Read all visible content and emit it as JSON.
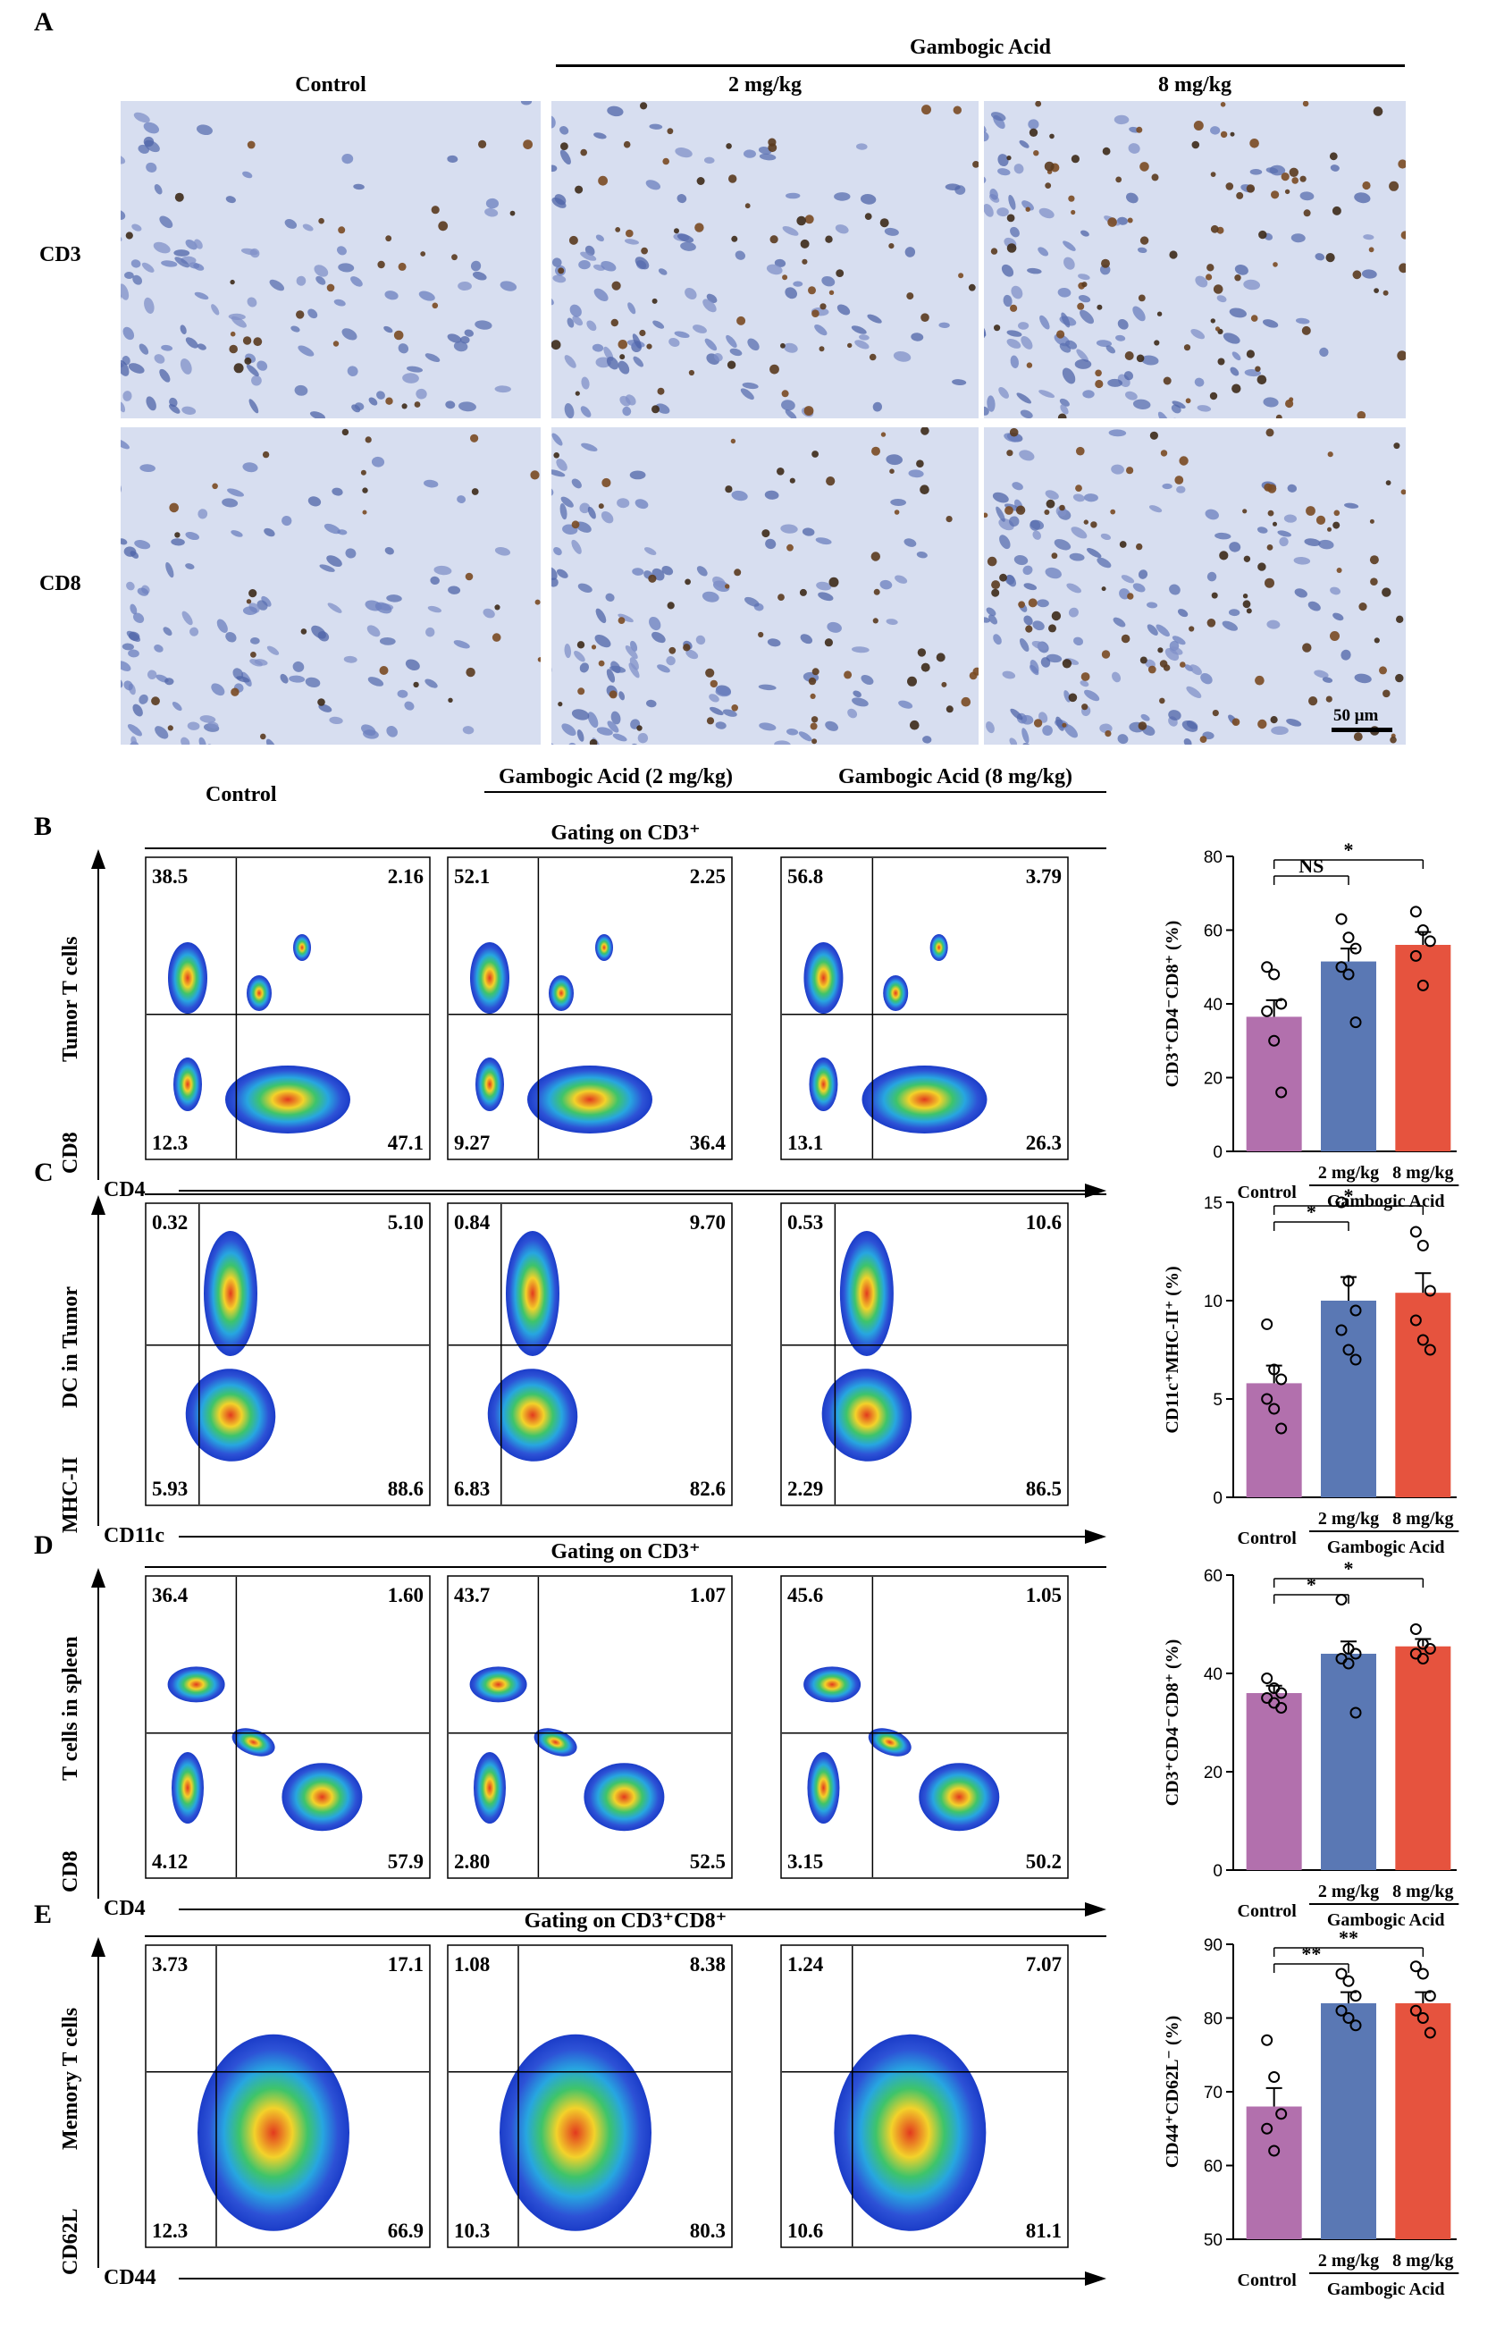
{
  "panels": {
    "A": "A",
    "B": "B",
    "C": "C",
    "D": "D",
    "E": "E"
  },
  "panelA": {
    "group_label": "Gambogic Acid",
    "columns": [
      "Control",
      "2 mg/kg",
      "8 mg/kg"
    ],
    "rows": [
      "CD3",
      "CD8"
    ],
    "scale_bar": "50 μm"
  },
  "flow_headers": {
    "control": "Control",
    "ga2": "Gambogic Acid (2 mg/kg)",
    "ga8": "Gambogic Acid (8 mg/kg)"
  },
  "flow_rows": [
    {
      "id": "B",
      "gating": "Gating on CD3⁺",
      "ylabel": "Tumor T cells",
      "yaxis": "CD8",
      "xaxis": "CD4",
      "plots": [
        {
          "tl": "38.5",
          "tr": "2.16",
          "bl": "12.3",
          "br": "47.1"
        },
        {
          "tl": "52.1",
          "tr": "2.25",
          "bl": "9.27",
          "br": "36.4"
        },
        {
          "tl": "56.8",
          "tr": "3.79",
          "bl": "13.1",
          "br": "26.3"
        }
      ]
    },
    {
      "id": "C",
      "gating": "",
      "ylabel": "DC in Tumor",
      "yaxis": "MHC-II",
      "xaxis": "CD11c",
      "plots": [
        {
          "tl": "0.32",
          "tr": "5.10",
          "bl": "5.93",
          "br": "88.6"
        },
        {
          "tl": "0.84",
          "tr": "9.70",
          "bl": "6.83",
          "br": "82.6"
        },
        {
          "tl": "0.53",
          "tr": "10.6",
          "bl": "2.29",
          "br": "86.5"
        }
      ]
    },
    {
      "id": "D",
      "gating": "Gating on CD3⁺",
      "ylabel": "T cells in spleen",
      "yaxis": "CD8",
      "xaxis": "CD4",
      "plots": [
        {
          "tl": "36.4",
          "tr": "1.60",
          "bl": "4.12",
          "br": "57.9"
        },
        {
          "tl": "43.7",
          "tr": "1.07",
          "bl": "2.80",
          "br": "52.5"
        },
        {
          "tl": "45.6",
          "tr": "1.05",
          "bl": "3.15",
          "br": "50.2"
        }
      ]
    },
    {
      "id": "E",
      "gating": "Gating on CD3⁺CD8⁺",
      "ylabel": "Memory T cells",
      "yaxis": "CD62L",
      "xaxis": "CD44",
      "plots": [
        {
          "tl": "3.73",
          "tr": "17.1",
          "bl": "12.3",
          "br": "66.9"
        },
        {
          "tl": "1.08",
          "tr": "8.38",
          "bl": "10.3",
          "br": "80.3"
        },
        {
          "tl": "1.24",
          "tr": "7.07",
          "bl": "10.6",
          "br": "81.1"
        }
      ]
    }
  ],
  "chart_data": [
    {
      "type": "bar",
      "panel": "B",
      "ylabel": "CD3⁺CD4⁻CD8⁺ (%)",
      "categories": [
        "Control",
        "2 mg/kg",
        "8 mg/kg"
      ],
      "group_label": "Gambogic Acid",
      "values": [
        36.5,
        51.5,
        56
      ],
      "errors": [
        4.5,
        3.5,
        3.5
      ],
      "points": [
        [
          50,
          48,
          40,
          38,
          30,
          16
        ],
        [
          63,
          58,
          55,
          50,
          48,
          35
        ],
        [
          65,
          60,
          57,
          53,
          45
        ]
      ],
      "ylim": [
        0,
        80
      ],
      "yticks": [
        0,
        20,
        40,
        60,
        80
      ],
      "significance": [
        {
          "from": 0,
          "to": 1,
          "label": "NS"
        },
        {
          "from": 0,
          "to": 2,
          "label": "*"
        }
      ],
      "colors": [
        "#b270ad",
        "#5a78b4",
        "#e6533e"
      ]
    },
    {
      "type": "bar",
      "panel": "C",
      "ylabel": "CD11c⁺MHC-II⁺ (%)",
      "categories": [
        "Control",
        "2 mg/kg",
        "8 mg/kg"
      ],
      "group_label": "Gambogic Acid",
      "values": [
        5.8,
        10,
        10.4
      ],
      "errors": [
        0.9,
        1.2,
        1.0
      ],
      "points": [
        [
          8.8,
          6.5,
          6,
          5,
          4.5,
          3.5
        ],
        [
          15,
          11,
          9.5,
          8.5,
          7.5,
          7
        ],
        [
          13.5,
          12.8,
          10.5,
          9,
          8,
          7.5
        ]
      ],
      "ylim": [
        0,
        15
      ],
      "yticks": [
        0,
        5,
        10,
        15
      ],
      "significance": [
        {
          "from": 0,
          "to": 1,
          "label": "*"
        },
        {
          "from": 0,
          "to": 2,
          "label": "*"
        }
      ],
      "colors": [
        "#b270ad",
        "#5a78b4",
        "#e6533e"
      ]
    },
    {
      "type": "bar",
      "panel": "D",
      "ylabel": "CD3⁺CD4⁻CD8⁺ (%)",
      "categories": [
        "Control",
        "2 mg/kg",
        "8 mg/kg"
      ],
      "group_label": "Gambogic Acid",
      "values": [
        36,
        44,
        45.5
      ],
      "errors": [
        1.5,
        2.5,
        1.5
      ],
      "points": [
        [
          39,
          37,
          36,
          35,
          34,
          33
        ],
        [
          55,
          45,
          44,
          43,
          42,
          32
        ],
        [
          49,
          46,
          45,
          44,
          43
        ]
      ],
      "ylim": [
        0,
        60
      ],
      "yticks": [
        0,
        20,
        40,
        60
      ],
      "significance": [
        {
          "from": 0,
          "to": 1,
          "label": "*"
        },
        {
          "from": 0,
          "to": 2,
          "label": "*"
        }
      ],
      "colors": [
        "#b270ad",
        "#5a78b4",
        "#e6533e"
      ]
    },
    {
      "type": "bar",
      "panel": "E",
      "ylabel": "CD44⁺CD62L⁻ (%)",
      "categories": [
        "Control",
        "2 mg/kg",
        "8 mg/kg"
      ],
      "group_label": "Gambogic Acid",
      "values": [
        68,
        82,
        82
      ],
      "errors": [
        2.5,
        1.5,
        1.5
      ],
      "points": [
        [
          77,
          72,
          67,
          65,
          62
        ],
        [
          86,
          85,
          83,
          81,
          80,
          79
        ],
        [
          87,
          86,
          83,
          81,
          80,
          78
        ]
      ],
      "ylim": [
        50,
        90
      ],
      "yticks": [
        50,
        60,
        70,
        80,
        90
      ],
      "significance": [
        {
          "from": 0,
          "to": 1,
          "label": "**"
        },
        {
          "from": 0,
          "to": 2,
          "label": "**"
        }
      ],
      "colors": [
        "#b270ad",
        "#5a78b4",
        "#e6533e"
      ]
    }
  ]
}
